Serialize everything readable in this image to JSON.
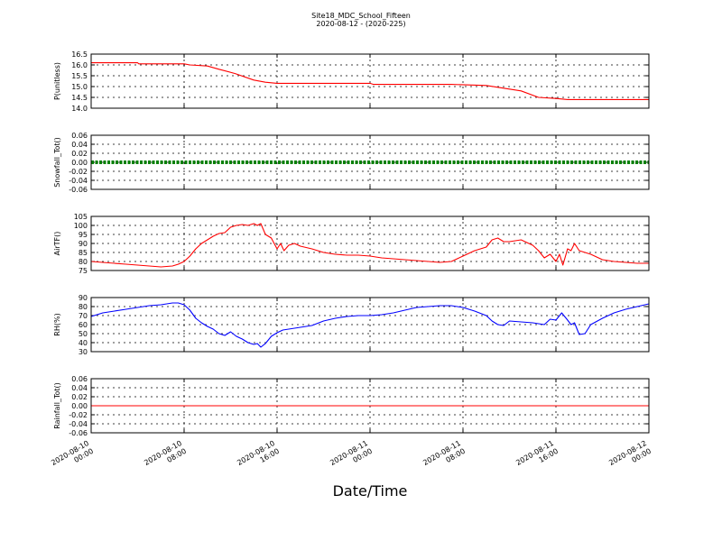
{
  "chart_data": {
    "type": "line",
    "title": "Site18_MDC_School_Fifteen",
    "subtitle": "2020-08-12 - (2020-225)",
    "xlabel": "Date/Time",
    "x_ticks": [
      {
        "l1": "2020-08-10",
        "l2": "00:00"
      },
      {
        "l1": "2020-08-10",
        "l2": "08:00"
      },
      {
        "l1": "2020-08-10",
        "l2": "16:00"
      },
      {
        "l1": "2020-08-11",
        "l2": "00:00"
      },
      {
        "l1": "2020-08-11",
        "l2": "08:00"
      },
      {
        "l1": "2020-08-11",
        "l2": "16:00"
      },
      {
        "l1": "2020-08-12",
        "l2": "00:00"
      }
    ],
    "xlim_hours": [
      0,
      48
    ],
    "grid": true,
    "panels": [
      {
        "ylabel": "P(unitless)",
        "color": "#ff0000",
        "ylim": [
          14.0,
          16.5
        ],
        "yticks": [
          "16.5",
          "16.0",
          "15.5",
          "15.0",
          "14.5",
          "14.0"
        ],
        "x": [
          0,
          4,
          4.1,
          8,
          8.5,
          10,
          11,
          12.4,
          14,
          15,
          16,
          24,
          24.3,
          31,
          34,
          37,
          38.5,
          40,
          41,
          44,
          48
        ],
        "y": [
          16.1,
          16.1,
          16.05,
          16.05,
          16.0,
          15.95,
          15.8,
          15.6,
          15.3,
          15.2,
          15.15,
          15.15,
          15.1,
          15.1,
          15.05,
          14.8,
          14.5,
          14.45,
          14.4,
          14.4,
          14.4
        ]
      },
      {
        "ylabel": "Snowfall_Tot()",
        "color": "#008000",
        "style": "markers",
        "ylim": [
          -0.06,
          0.06
        ],
        "yticks": [
          "0.06",
          "0.04",
          "0.02",
          "0.00",
          "-0.02",
          "-0.04",
          "-0.06"
        ],
        "x": [
          0,
          48
        ],
        "y": [
          0,
          0
        ]
      },
      {
        "ylabel": "AirTF()",
        "color": "#ff0000",
        "ylim": [
          75,
          105
        ],
        "yticks": [
          "105",
          "100",
          "95",
          "90",
          "85",
          "80",
          "75"
        ],
        "x": [
          0,
          1,
          2,
          3,
          4,
          5,
          6,
          7,
          7.5,
          8,
          8.5,
          9,
          9.5,
          10,
          10.5,
          11,
          11.5,
          12,
          12.5,
          13,
          13.5,
          14,
          14.3,
          14.6,
          15,
          15.5,
          16,
          16.3,
          16.6,
          17,
          17.5,
          18,
          19,
          20,
          21,
          22,
          23,
          24,
          25,
          26,
          27,
          28,
          29,
          30,
          31,
          32,
          33,
          34,
          34.5,
          35,
          35.5,
          36,
          37,
          38,
          38.5,
          39,
          39.5,
          40,
          40.3,
          40.6,
          41,
          41.3,
          41.6,
          42,
          42.5,
          43,
          44,
          45,
          46,
          47,
          48
        ],
        "y": [
          80,
          79.5,
          79,
          78.5,
          78,
          77.5,
          77,
          77.5,
          78.5,
          80,
          83,
          87,
          90,
          92,
          94,
          95.5,
          96,
          99,
          100,
          100.5,
          100,
          101,
          100,
          101,
          95,
          93,
          87,
          90,
          86,
          89,
          90,
          88.5,
          87,
          85,
          84,
          83.5,
          83.5,
          83,
          82,
          81.5,
          81,
          80.5,
          80,
          79.5,
          80,
          83,
          86,
          88,
          92,
          93,
          91,
          91,
          92,
          89,
          86,
          82,
          84,
          80,
          84,
          78,
          87,
          86,
          90,
          86,
          85,
          84,
          81,
          80,
          79.5,
          79,
          79
        ]
      },
      {
        "ylabel": "RH(%)",
        "color": "#0000ff",
        "ylim": [
          30,
          90
        ],
        "yticks": [
          "90",
          "80",
          "70",
          "60",
          "50",
          "40",
          "30"
        ],
        "x": [
          0,
          1,
          2,
          3,
          4,
          5,
          6,
          6.5,
          7,
          7.5,
          8,
          8.5,
          9,
          9.5,
          10,
          10.5,
          11,
          11.5,
          12,
          12.5,
          13,
          13.5,
          14,
          14.3,
          14.6,
          15,
          15.5,
          16,
          16.5,
          17,
          18,
          19,
          20,
          21,
          22,
          23,
          24,
          25,
          26,
          27,
          28,
          29,
          30,
          31,
          32,
          33,
          34,
          34.5,
          35,
          35.5,
          36,
          37,
          38,
          39,
          39.5,
          40,
          40.5,
          41,
          41.3,
          41.6,
          42,
          42.5,
          43,
          44,
          45,
          46,
          47,
          48
        ],
        "y": [
          69,
          73,
          75,
          77,
          79,
          81,
          82,
          83,
          84,
          84,
          82,
          76,
          67,
          62,
          58,
          55,
          50,
          48,
          52,
          47,
          44,
          40,
          38,
          39,
          35,
          39,
          47,
          51,
          54,
          55,
          57,
          59,
          64,
          67,
          69,
          70,
          70,
          71,
          73,
          76,
          79,
          80,
          81,
          81,
          79,
          75,
          70,
          64,
          60,
          59,
          64,
          63,
          62,
          60,
          66,
          65,
          73,
          65,
          60,
          62,
          49,
          50,
          60,
          67,
          73,
          77,
          80,
          83
        ]
      },
      {
        "ylabel": "Rainfall_Tot()",
        "color": "#ff0000",
        "ylim": [
          -0.06,
          0.06
        ],
        "yticks": [
          "0.06",
          "0.04",
          "0.02",
          "0.00",
          "-0.02",
          "-0.04",
          "-0.06"
        ],
        "x": [
          0,
          48
        ],
        "y": [
          0,
          0
        ]
      }
    ]
  }
}
